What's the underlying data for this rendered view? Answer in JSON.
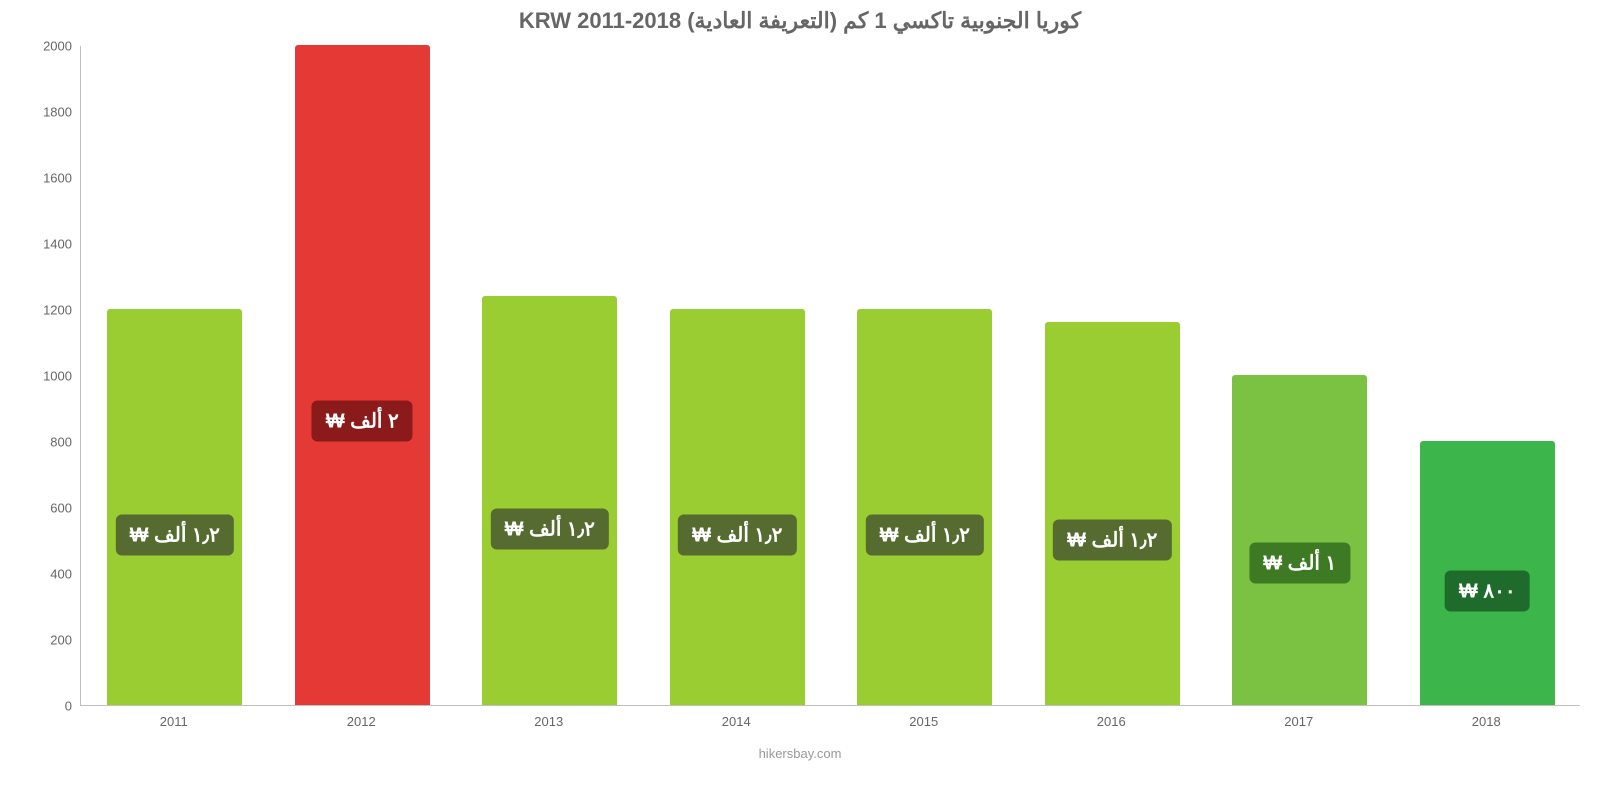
{
  "chart": {
    "type": "bar",
    "title": "كوريا الجنوبية تاكسي 1 كم (التعريفة العادية) KRW 2011-2018",
    "title_color": "#666666",
    "title_fontsize": 22,
    "background_color": "#ffffff",
    "axis_color": "#c0c0c0",
    "tick_label_color": "#666666",
    "tick_fontsize": 13,
    "ylim_min": 0,
    "ylim_max": 2000,
    "ytick_step": 200,
    "yticks": [
      {
        "v": 0,
        "label": "0"
      },
      {
        "v": 200,
        "label": "200"
      },
      {
        "v": 400,
        "label": "400"
      },
      {
        "v": 600,
        "label": "600"
      },
      {
        "v": 800,
        "label": "800"
      },
      {
        "v": 1000,
        "label": "1000"
      },
      {
        "v": 1200,
        "label": "1200"
      },
      {
        "v": 1400,
        "label": "1400"
      },
      {
        "v": 1600,
        "label": "1600"
      },
      {
        "v": 1800,
        "label": "1800"
      },
      {
        "v": 2000,
        "label": "2000"
      }
    ],
    "bar_width_ratio": 0.72,
    "categories": [
      "2011",
      "2012",
      "2013",
      "2014",
      "2015",
      "2016",
      "2017",
      "2018"
    ],
    "bars": [
      {
        "year": "2011",
        "value": 1200,
        "color": "#9acd32",
        "label": "١٫٢ ألف ₩",
        "label_bg": "#556b2f"
      },
      {
        "year": "2012",
        "value": 2000,
        "color": "#e53935",
        "label": "٢ ألف ₩",
        "label_bg": "#8b1a1a"
      },
      {
        "year": "2013",
        "value": 1240,
        "color": "#9acd32",
        "label": "١٫٢ ألف ₩",
        "label_bg": "#556b2f"
      },
      {
        "year": "2014",
        "value": 1200,
        "color": "#9acd32",
        "label": "١٫٢ ألف ₩",
        "label_bg": "#556b2f"
      },
      {
        "year": "2015",
        "value": 1200,
        "color": "#9acd32",
        "label": "١٫٢ ألف ₩",
        "label_bg": "#556b2f"
      },
      {
        "year": "2016",
        "value": 1160,
        "color": "#9acd32",
        "label": "١٫٢ ألف ₩",
        "label_bg": "#556b2f"
      },
      {
        "year": "2017",
        "value": 1000,
        "color": "#7cc242",
        "label": "١ ألف ₩",
        "label_bg": "#3e7a23"
      },
      {
        "year": "2018",
        "value": 800,
        "color": "#3cb54a",
        "label": "٨٠٠ ₩",
        "label_bg": "#1f6b2c"
      }
    ],
    "value_label_fontsize": 20,
    "value_label_color": "#ffffff",
    "credit": "hikersbay.com",
    "credit_color": "#999999"
  }
}
